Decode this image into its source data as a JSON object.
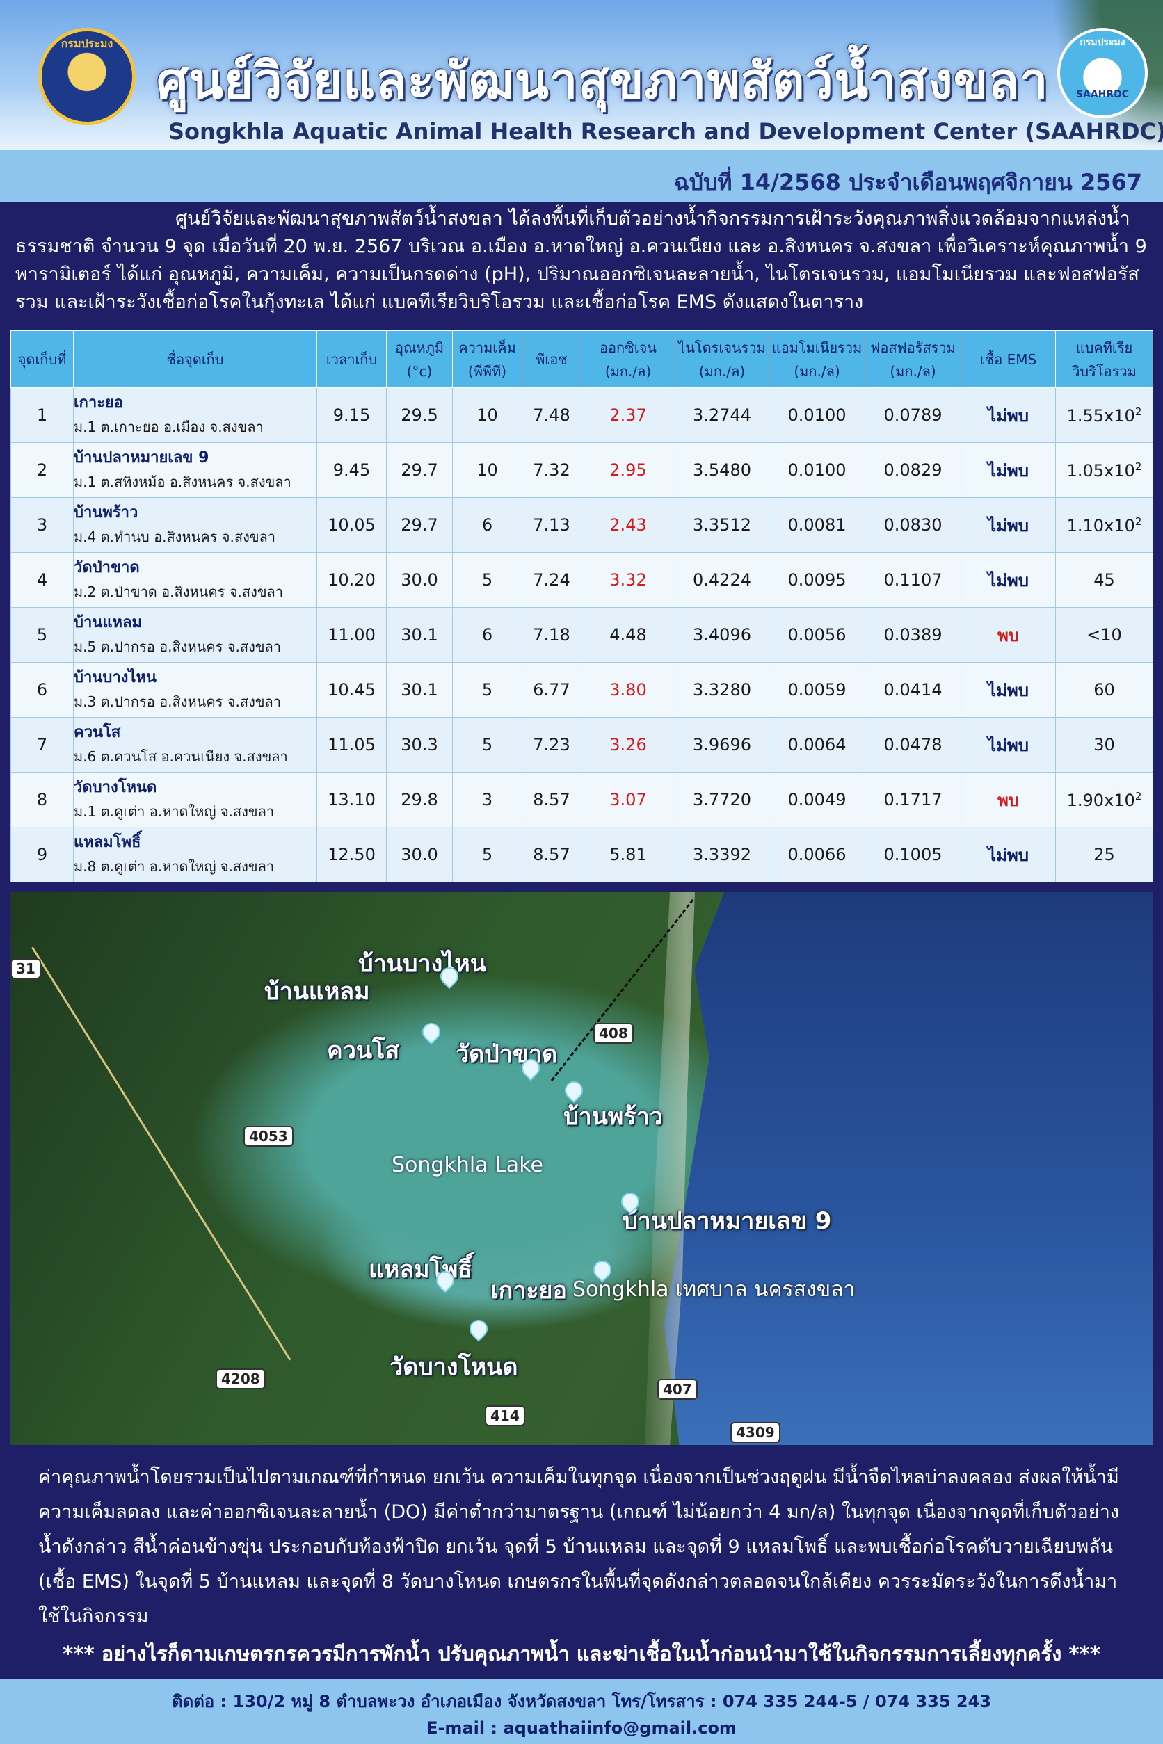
{
  "header": {
    "title_th": "ศูนย์วิจัยและพัฒนาสุขภาพสัตว์น้ำสงขลา",
    "title_en": "Songkhla Aquatic Animal Health Research and Development Center (SAAHRDC)",
    "logo_left_text": "กรมประมง",
    "logo_right_text": "กรมประมง",
    "logo_right_code": "SAAHRDC",
    "issue": "ฉบับที่ 14/2568 ประจำเดือนพฤศจิกายน 2567"
  },
  "intro": "ศูนย์วิจัยและพัฒนาสุขภาพสัตว์น้ำสงขลา ได้ลงพื้นที่เก็บตัวอย่างน้ำกิจกรรมการเฝ้าระวังคุณภาพสิ่งแวดล้อมจากแหล่งน้ำธรรมชาติ จำนวน 9 จุด เมื่อวันที่ 20 พ.ย. 2567 บริเวณ อ.เมือง อ.หาดใหญ่ อ.ควนเนียง และ อ.สิงหนคร จ.สงขลา เพื่อวิเคราะห์คุณภาพน้ำ 9 พารามิเตอร์ ได้แก่ อุณหภูมิ, ความเค็ม, ความเป็นกรดด่าง (pH), ปริมาณออกซิเจนละลายน้ำ, ไนโตรเจนรวม, แอมโมเนียรวม และฟอสฟอรัสรวม และเฝ้าระวังเชื้อก่อโรคในกุ้งทะเล ได้แก่ แบคทีเรียวิบริโอรวม  และเชื้อก่อโรค EMS ดังแสดงในตาราง",
  "table": {
    "headers": [
      {
        "l1": "จุดเก็บที่",
        "l2": ""
      },
      {
        "l1": "ชื่อจุดเก็บ",
        "l2": ""
      },
      {
        "l1": "เวลาเก็บ",
        "l2": ""
      },
      {
        "l1": "อุณหภูมิ",
        "l2": "(°c)"
      },
      {
        "l1": "ความเค็ม",
        "l2": "(พีพีที)"
      },
      {
        "l1": "พีเอช",
        "l2": ""
      },
      {
        "l1": "ออกซิเจน",
        "l2": "(มก./ล)"
      },
      {
        "l1": "ไนโตรเจนรวม",
        "l2": "(มก./ล)"
      },
      {
        "l1": "แอมโมเนียรวม",
        "l2": "(มก./ล)"
      },
      {
        "l1": "ฟอสฟอรัสรวม",
        "l2": "(มก./ล)"
      },
      {
        "l1": "เชื้อ EMS",
        "l2": ""
      },
      {
        "l1": "แบคทีเรีย",
        "l2": "วิบริโอรวม"
      }
    ],
    "rows": [
      {
        "no": "1",
        "name": "เกาะยอ",
        "addr": "ม.1 ต.เกาะยอ อ.เมือง จ.สงขลา",
        "time": "9.15",
        "temp": "29.5",
        "sal": "10",
        "ph": "7.48",
        "do": "2.37",
        "do_low": true,
        "tn": "3.2744",
        "ta": "0.0100",
        "tp": "0.0789",
        "ems": "ไม่พบ",
        "ems_found": false,
        "vib": "1.55x10",
        "vib_exp": "2"
      },
      {
        "no": "2",
        "name": "บ้านปลาหมายเลข 9",
        "addr": "ม.1 ต.สทิงหม้อ อ.สิงหนคร จ.สงขลา",
        "time": "9.45",
        "temp": "29.7",
        "sal": "10",
        "ph": "7.32",
        "do": "2.95",
        "do_low": true,
        "tn": "3.5480",
        "ta": "0.0100",
        "tp": "0.0829",
        "ems": "ไม่พบ",
        "ems_found": false,
        "vib": "1.05x10",
        "vib_exp": "2"
      },
      {
        "no": "3",
        "name": "บ้านพร้าว",
        "addr": "ม.4 ต.ทำนบ อ.สิงหนคร จ.สงขลา",
        "time": "10.05",
        "temp": "29.7",
        "sal": "6",
        "ph": "7.13",
        "do": "2.43",
        "do_low": true,
        "tn": "3.3512",
        "ta": "0.0081",
        "tp": "0.0830",
        "ems": "ไม่พบ",
        "ems_found": false,
        "vib": "1.10x10",
        "vib_exp": "2"
      },
      {
        "no": "4",
        "name": "วัดป่าขาด",
        "addr": "ม.2 ต.ป่าขาด อ.สิงหนคร จ.สงขลา",
        "time": "10.20",
        "temp": "30.0",
        "sal": "5",
        "ph": "7.24",
        "do": "3.32",
        "do_low": true,
        "tn": "0.4224",
        "ta": "0.0095",
        "tp": "0.1107",
        "ems": "ไม่พบ",
        "ems_found": false,
        "vib": "45",
        "vib_exp": ""
      },
      {
        "no": "5",
        "name": "บ้านแหลม",
        "addr": "ม.5 ต.ปากรอ อ.สิงหนคร จ.สงขลา",
        "time": "11.00",
        "temp": "30.1",
        "sal": "6",
        "ph": "7.18",
        "do": "4.48",
        "do_low": false,
        "tn": "3.4096",
        "ta": "0.0056",
        "tp": "0.0389",
        "ems": "พบ",
        "ems_found": true,
        "vib": "<10",
        "vib_exp": ""
      },
      {
        "no": "6",
        "name": "บ้านบางไหน",
        "addr": "ม.3 ต.ปากรอ อ.สิงหนคร จ.สงขลา",
        "time": "10.45",
        "temp": "30.1",
        "sal": "5",
        "ph": "6.77",
        "do": "3.80",
        "do_low": true,
        "tn": "3.3280",
        "ta": "0.0059",
        "tp": "0.0414",
        "ems": "ไม่พบ",
        "ems_found": false,
        "vib": "60",
        "vib_exp": ""
      },
      {
        "no": "7",
        "name": "ควนโส",
        "addr": "ม.6 ต.ควนโส อ.ควนเนียง จ.สงขลา",
        "time": "11.05",
        "temp": "30.3",
        "sal": "5",
        "ph": "7.23",
        "do": "3.26",
        "do_low": true,
        "tn": "3.9696",
        "ta": "0.0064",
        "tp": "0.0478",
        "ems": "ไม่พบ",
        "ems_found": false,
        "vib": "30",
        "vib_exp": ""
      },
      {
        "no": "8",
        "name": "วัดบางโหนด",
        "addr": "ม.1 ต.คูเต่า อ.หาดใหญ่ จ.สงขลา",
        "time": "13.10",
        "temp": "29.8",
        "sal": "3",
        "ph": "8.57",
        "do": "3.07",
        "do_low": true,
        "tn": "3.7720",
        "ta": "0.0049",
        "tp": "0.1717",
        "ems": "พบ",
        "ems_found": true,
        "vib": "1.90x10",
        "vib_exp": "2"
      },
      {
        "no": "9",
        "name": "แหลมโพธิ์",
        "addr": "ม.8 ต.คูเต่า อ.หาดใหญ่ จ.สงขลา",
        "time": "12.50",
        "temp": "30.0",
        "sal": "5",
        "ph": "8.57",
        "do": "5.81",
        "do_low": false,
        "tn": "3.3392",
        "ta": "0.0066",
        "tp": "0.1005",
        "ems": "ไม่พบ",
        "ems_found": false,
        "vib": "25",
        "vib_exp": ""
      }
    ]
  },
  "map": {
    "lake_label": "Songkhla Lake",
    "places": {
      "bang_nai": "บ้านบางไหน",
      "ban_laem": "บ้านแหลม",
      "khuan_so": "ควนโส",
      "wat_pa_khat": "วัดป่าขาด",
      "ban_phrao": "บ้านพร้าว",
      "ban_pla": "บ้านปลาหมายเลข 9",
      "laem_pho": "แหลมโพธิ์",
      "ko_yo": "เกาะยอ",
      "wat_bang_not": "วัดบางโหนด"
    },
    "city_label": "Songkhla เทศบาล นครสงขลา",
    "roads": [
      "31",
      "408",
      "4053",
      "4208",
      "414",
      "407",
      "4309"
    ]
  },
  "conclusion": "ค่าคุณภาพน้ำโดยรวมเป็นไปตามเกณฑ์ที่กำหนด ยกเว้น ความเค็มในทุกจุด เนื่องจากเป็นช่วงฤดูฝน มีน้ำจืดไหลบ่าลงคลอง ส่งผลให้น้ำมีความเค็มลดลง และค่าออกซิเจนละลายน้ำ (DO) มีค่าต่ำกว่ามาตรฐาน (เกณฑ์ ไม่น้อยกว่า 4 มก/ล) ในทุกจุด เนื่องจากจุดที่เก็บตัวอย่างน้ำดังกล่าว สีน้ำค่อนข้างขุ่น ประกอบกับท้องฟ้าปิด ยกเว้น จุดที่ 5 บ้านแหลม และจุดที่ 9 แหลมโพธิ์ และพบเชื้อก่อโรคตับวายเฉียบพลัน (เชื้อ EMS) ในจุดที่ 5 บ้านแหลม และจุดที่ 8 วัดบางโหนด เกษตรกรในพื้นที่จุดดังกล่าวตลอดจนใกล้เคียง ควรระมัดระวังในการดึงน้ำมาใช้ในกิจกรรม",
  "warning": "*** อย่างไรก็ตามเกษตรกรควรมีการพักน้ำ ปรับคุณภาพน้ำ และฆ่าเชื้อในน้ำก่อนนำมาใช้ในกิจกรรมการเลี้ยงทุกครั้ง ***",
  "footer": {
    "contact": "ติดต่อ : 130/2 หมู่ 8 ตำบลพะวง อำเภอเมือง จังหวัดสงขลา โทร/โทรสาร : 074 335 244-5 / 074 335 243",
    "email": "E-mail : aquathaiinfo@gmail.com"
  },
  "colors": {
    "navy": "#1e1f66",
    "header_cell": "#4fb6ea",
    "strip": "#8ec5ef",
    "alert_red": "#d21c1c"
  }
}
